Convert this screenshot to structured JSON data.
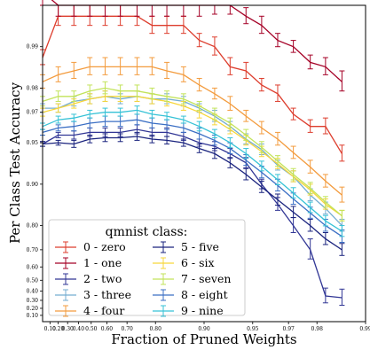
{
  "chart_data": {
    "type": "line",
    "title": "",
    "xlabel": "Fraction of Pruned Weights",
    "ylabel": "Per Class Test Accuracy",
    "x_scale": "log_one_minus",
    "y_scale": "log_one_minus",
    "xlim": [
      0,
      0.99
    ],
    "ylim": [
      0.0,
      0.995
    ],
    "x_ticks": [
      {
        "value": 0.1,
        "label": "0.10"
      },
      {
        "value": 0.2,
        "label": "0.20"
      },
      {
        "value": 0.3,
        "label": "0.30"
      },
      {
        "value": 0.4,
        "label": "0.40"
      },
      {
        "value": 0.5,
        "label": "0.50"
      },
      {
        "value": 0.6,
        "label": "0.60"
      },
      {
        "value": 0.7,
        "label": "0.70"
      },
      {
        "value": 0.8,
        "label": "0.80"
      },
      {
        "value": 0.9,
        "label": "0.90"
      },
      {
        "value": 0.95,
        "label": "0.95"
      },
      {
        "value": 0.97,
        "label": "0.97"
      },
      {
        "value": 0.98,
        "label": "0.98"
      },
      {
        "value": 0.99,
        "label": "0.99"
      }
    ],
    "y_ticks": [
      {
        "value": 0.1,
        "label": "0.10"
      },
      {
        "value": 0.2,
        "label": "0.20"
      },
      {
        "value": 0.3,
        "label": "0.30"
      },
      {
        "value": 0.4,
        "label": "0.40"
      },
      {
        "value": 0.5,
        "label": "0.50"
      },
      {
        "value": 0.6,
        "label": "0.60"
      },
      {
        "value": 0.7,
        "label": "0.70"
      },
      {
        "value": 0.8,
        "label": "0.80"
      },
      {
        "value": 0.9,
        "label": "0.90"
      },
      {
        "value": 0.95,
        "label": "0.95"
      },
      {
        "value": 0.97,
        "label": "0.97"
      },
      {
        "value": 0.98,
        "label": "0.98"
      },
      {
        "value": 0.99,
        "label": "0.99"
      }
    ],
    "grid": false,
    "legend": {
      "title": "qmnist class:",
      "placement": "lower-left",
      "columns": 2
    },
    "x": [
      0.0,
      0.2,
      0.36,
      0.49,
      0.59,
      0.67,
      0.74,
      0.79,
      0.83,
      0.866,
      0.893,
      0.914,
      0.931,
      0.945,
      0.956,
      0.965,
      0.972,
      0.978,
      0.9823,
      0.986
    ],
    "series": [
      {
        "name": "0 - zero",
        "color": "#dd3d2d",
        "y": [
          0.988,
          0.994,
          0.994,
          0.994,
          0.994,
          0.994,
          0.994,
          0.993,
          0.993,
          0.993,
          0.991,
          0.99,
          0.986,
          0.985,
          0.981,
          0.978,
          0.969,
          0.962,
          0.962,
          0.94
        ],
        "err": [
          0.0015,
          0.001,
          0.001,
          0.001,
          0.001,
          0.001,
          0.001,
          0.001,
          0.001,
          0.001,
          0.001,
          0.0015,
          0.002,
          0.002,
          0.002,
          0.003,
          0.003,
          0.004,
          0.005,
          0.008
        ]
      },
      {
        "name": "1 - one",
        "color": "#a50026",
        "y": [
          0.996,
          0.995,
          0.995,
          0.995,
          0.995,
          0.995,
          0.995,
          0.995,
          0.995,
          0.995,
          0.995,
          0.995,
          0.995,
          0.994,
          0.993,
          0.991,
          0.99,
          0.987,
          0.986,
          0.982
        ],
        "err": [
          0.0005,
          0.001,
          0.001,
          0.001,
          0.001,
          0.001,
          0.001,
          0.001,
          0.001,
          0.001,
          0.001,
          0.0008,
          0.0008,
          0.0008,
          0.001,
          0.001,
          0.001,
          0.0015,
          0.002,
          0.003
        ]
      },
      {
        "name": "2 - two",
        "color": "#313695",
        "y": [
          0.949,
          0.956,
          0.956,
          0.958,
          0.958,
          0.958,
          0.96,
          0.958,
          0.958,
          0.955,
          0.95,
          0.947,
          0.94,
          0.93,
          0.9,
          0.86,
          0.8,
          0.7,
          0.35,
          0.33
        ],
        "err": [
          0.002,
          0.002,
          0.003,
          0.003,
          0.003,
          0.003,
          0.003,
          0.003,
          0.003,
          0.003,
          0.003,
          0.004,
          0.005,
          0.006,
          0.008,
          0.015,
          0.025,
          0.05,
          0.08,
          0.09
        ]
      },
      {
        "name": "3 - three",
        "color": "#74add1",
        "y": [
          0.972,
          0.972,
          0.975,
          0.976,
          0.977,
          0.976,
          0.977,
          0.976,
          0.976,
          0.975,
          0.972,
          0.968,
          0.962,
          0.953,
          0.944,
          0.927,
          0.912,
          0.88,
          0.85,
          0.8
        ],
        "err": [
          0.002,
          0.002,
          0.002,
          0.002,
          0.002,
          0.002,
          0.002,
          0.002,
          0.002,
          0.002,
          0.002,
          0.003,
          0.003,
          0.004,
          0.005,
          0.006,
          0.008,
          0.012,
          0.015,
          0.02
        ]
      },
      {
        "name": "4 - four",
        "color": "#f39b3d",
        "y": [
          0.982,
          0.984,
          0.985,
          0.986,
          0.986,
          0.986,
          0.986,
          0.986,
          0.985,
          0.984,
          0.981,
          0.978,
          0.974,
          0.968,
          0.961,
          0.953,
          0.941,
          0.925,
          0.905,
          0.88
        ],
        "err": [
          0.002,
          0.002,
          0.002,
          0.002,
          0.002,
          0.002,
          0.002,
          0.002,
          0.002,
          0.002,
          0.002,
          0.002,
          0.003,
          0.003,
          0.004,
          0.005,
          0.006,
          0.008,
          0.01,
          0.015
        ]
      },
      {
        "name": "5 - five",
        "color": "#1a237e",
        "y": [
          0.949,
          0.95,
          0.949,
          0.953,
          0.954,
          0.954,
          0.955,
          0.953,
          0.952,
          0.95,
          0.945,
          0.94,
          0.93,
          0.915,
          0.895,
          0.87,
          0.84,
          0.8,
          0.75,
          0.7
        ],
        "err": [
          0.002,
          0.002,
          0.003,
          0.003,
          0.003,
          0.003,
          0.003,
          0.003,
          0.003,
          0.003,
          0.004,
          0.005,
          0.006,
          0.008,
          0.01,
          0.012,
          0.015,
          0.02,
          0.025,
          0.03
        ]
      },
      {
        "name": "6 - six",
        "color": "#f7d63a",
        "y": [
          0.97,
          0.972,
          0.974,
          0.976,
          0.977,
          0.977,
          0.977,
          0.976,
          0.975,
          0.973,
          0.97,
          0.966,
          0.96,
          0.952,
          0.942,
          0.929,
          0.912,
          0.89,
          0.86,
          0.83
        ],
        "err": [
          0.002,
          0.002,
          0.002,
          0.002,
          0.002,
          0.002,
          0.002,
          0.002,
          0.002,
          0.002,
          0.003,
          0.003,
          0.003,
          0.004,
          0.005,
          0.006,
          0.008,
          0.01,
          0.012,
          0.015
        ]
      },
      {
        "name": "7 - seven",
        "color": "#c2e35a",
        "y": [
          0.975,
          0.977,
          0.977,
          0.979,
          0.98,
          0.979,
          0.979,
          0.978,
          0.977,
          0.976,
          0.973,
          0.969,
          0.964,
          0.956,
          0.946,
          0.932,
          0.915,
          0.893,
          0.865,
          0.83
        ],
        "err": [
          0.002,
          0.002,
          0.002,
          0.002,
          0.002,
          0.002,
          0.002,
          0.002,
          0.002,
          0.002,
          0.002,
          0.003,
          0.003,
          0.004,
          0.005,
          0.006,
          0.008,
          0.01,
          0.012,
          0.015
        ]
      },
      {
        "name": "8 - eight",
        "color": "#3b6fc4",
        "y": [
          0.958,
          0.961,
          0.962,
          0.964,
          0.965,
          0.965,
          0.966,
          0.964,
          0.963,
          0.961,
          0.957,
          0.952,
          0.945,
          0.933,
          0.918,
          0.898,
          0.872,
          0.838,
          0.8,
          0.76
        ],
        "err": [
          0.002,
          0.002,
          0.003,
          0.003,
          0.003,
          0.003,
          0.003,
          0.003,
          0.003,
          0.003,
          0.004,
          0.004,
          0.005,
          0.006,
          0.008,
          0.01,
          0.012,
          0.015,
          0.02,
          0.025
        ]
      },
      {
        "name": "9 - nine",
        "color": "#36c2d6",
        "y": [
          0.962,
          0.966,
          0.967,
          0.969,
          0.97,
          0.97,
          0.971,
          0.969,
          0.968,
          0.966,
          0.962,
          0.957,
          0.95,
          0.94,
          0.926,
          0.907,
          0.884,
          0.852,
          0.815,
          0.78
        ],
        "err": [
          0.002,
          0.002,
          0.002,
          0.002,
          0.002,
          0.002,
          0.002,
          0.002,
          0.002,
          0.002,
          0.003,
          0.003,
          0.004,
          0.005,
          0.006,
          0.008,
          0.01,
          0.013,
          0.016,
          0.02
        ]
      }
    ]
  }
}
